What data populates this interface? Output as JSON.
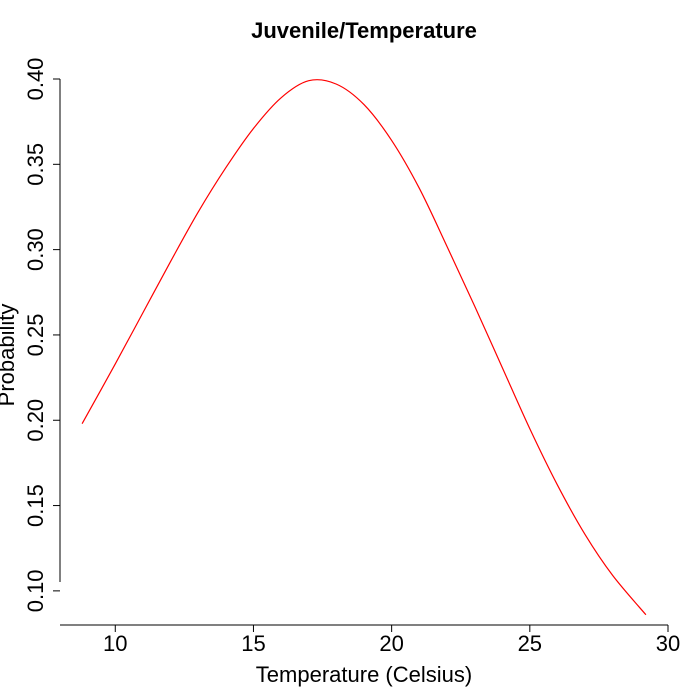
{
  "chart_data": {
    "type": "line",
    "title": "Juvenile/Temperature",
    "xlabel": "Temperature (Celsius)",
    "ylabel": "Probability",
    "xlim": [
      8,
      30
    ],
    "ylim": [
      0.08,
      0.4
    ],
    "xticks": [
      10,
      15,
      20,
      25,
      30
    ],
    "yticks": [
      0.1,
      0.15,
      0.2,
      0.25,
      0.3,
      0.35,
      0.4
    ],
    "ytick_labels": [
      "0.10",
      "0.15",
      "0.20",
      "0.25",
      "0.30",
      "0.35",
      "0.40"
    ],
    "grid": false,
    "legend": "none",
    "series": [
      {
        "color": "#ff0000",
        "x": [
          8.8,
          10,
          11,
          12,
          13,
          14,
          15,
          16,
          17,
          18,
          19,
          20,
          21,
          22,
          23,
          24,
          25,
          26,
          27,
          28,
          29.2
        ],
        "y": [
          0.198,
          0.233,
          0.263,
          0.293,
          0.322,
          0.348,
          0.371,
          0.389,
          0.399,
          0.397,
          0.385,
          0.364,
          0.336,
          0.302,
          0.267,
          0.231,
          0.195,
          0.162,
          0.133,
          0.109,
          0.086
        ]
      }
    ]
  }
}
